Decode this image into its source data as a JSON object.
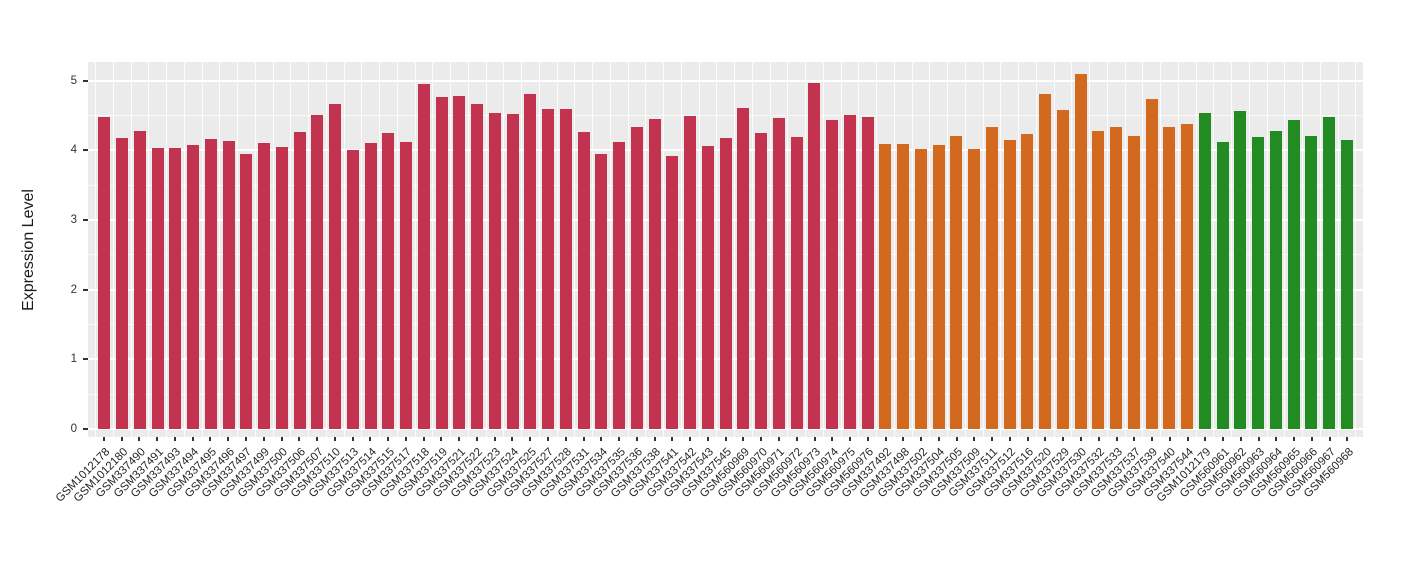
{
  "chart_data": {
    "type": "bar",
    "ylabel": "Expression Level",
    "yticks": [
      0,
      1,
      2,
      3,
      4,
      5
    ],
    "minor_grid_step": 0.5,
    "ylim": [
      0,
      5.27
    ],
    "grid": true,
    "legend_position": "none",
    "panel_bg": "#EBEBEB",
    "grid_color": "#FFFFFF",
    "tick_color": "#333333",
    "categories": [
      "GSM1012178",
      "GSM1012180",
      "GSM337490",
      "GSM337491",
      "GSM337493",
      "GSM337494",
      "GSM337495",
      "GSM337496",
      "GSM337497",
      "GSM337499",
      "GSM337500",
      "GSM337506",
      "GSM337507",
      "GSM337510",
      "GSM337513",
      "GSM337514",
      "GSM337515",
      "GSM337517",
      "GSM337518",
      "GSM337519",
      "GSM337521",
      "GSM337522",
      "GSM337523",
      "GSM337524",
      "GSM337525",
      "GSM337527",
      "GSM337528",
      "GSM337531",
      "GSM337534",
      "GSM337535",
      "GSM337536",
      "GSM337538",
      "GSM337541",
      "GSM337542",
      "GSM337543",
      "GSM337545",
      "GSM560969",
      "GSM560970",
      "GSM560971",
      "GSM560972",
      "GSM560973",
      "GSM560974",
      "GSM560975",
      "GSM560976",
      "GSM337492",
      "GSM337498",
      "GSM337502",
      "GSM337504",
      "GSM337505",
      "GSM337509",
      "GSM337511",
      "GSM337512",
      "GSM337516",
      "GSM337520",
      "GSM337529",
      "GSM337530",
      "GSM337532",
      "GSM337533",
      "GSM337537",
      "GSM337539",
      "GSM337540",
      "GSM337544",
      "GSM1012179",
      "GSM560961",
      "GSM560962",
      "GSM560963",
      "GSM560964",
      "GSM560965",
      "GSM560966",
      "GSM560967",
      "GSM560968"
    ],
    "values": [
      4.48,
      4.18,
      4.27,
      4.03,
      4.03,
      4.08,
      4.16,
      4.13,
      3.94,
      4.1,
      4.04,
      4.26,
      4.51,
      4.67,
      4.01,
      4.1,
      4.25,
      4.12,
      4.95,
      4.76,
      4.78,
      4.67,
      4.53,
      4.52,
      4.8,
      4.59,
      4.59,
      4.26,
      3.94,
      4.12,
      4.34,
      4.45,
      3.91,
      4.49,
      4.06,
      4.18,
      4.6,
      4.25,
      4.46,
      4.19,
      4.97,
      4.43,
      4.5,
      4.48,
      4.09,
      4.09,
      4.02,
      4.08,
      4.2,
      4.02,
      4.33,
      4.14,
      4.23,
      4.8,
      4.58,
      5.09,
      4.27,
      4.33,
      4.21,
      4.74,
      4.33,
      4.37,
      4.54,
      4.12,
      4.56,
      4.19,
      4.28,
      4.43,
      4.21,
      4.47,
      4.14
    ],
    "groups": [
      {
        "color": "#C23350",
        "from_index": 0,
        "to_index": 43
      },
      {
        "color": "#D2691E",
        "from_index": 44,
        "to_index": 61
      },
      {
        "color": "#228B22",
        "from_index": 62,
        "to_index": 70
      }
    ]
  }
}
